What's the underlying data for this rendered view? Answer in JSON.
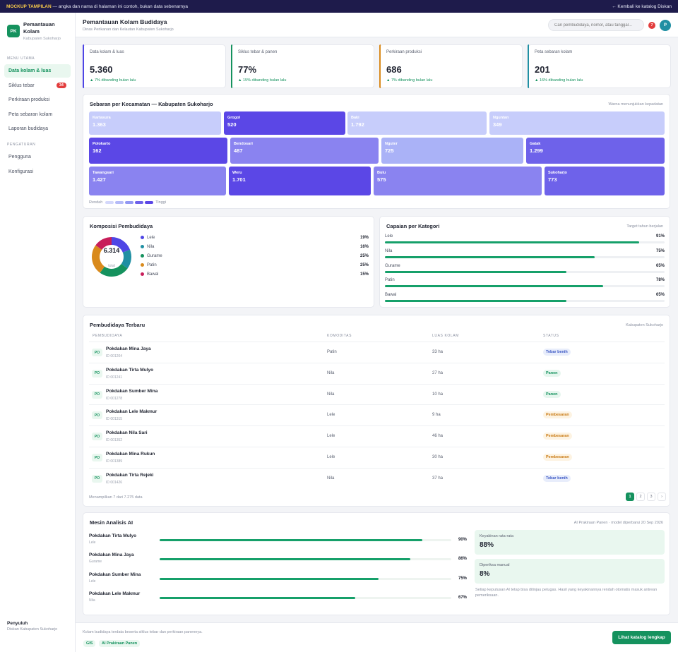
{
  "banner": {
    "tag": "MOCKUP TAMPILAN",
    "text": "— angka dan nama di halaman ini contoh, bukan data sebenarnya",
    "back_link": "← Kembali ke katalog Diskan"
  },
  "sidebar": {
    "logo": "PK",
    "app_title_1": "Pemantauan",
    "app_title_2": "Kolam",
    "app_subtitle": "Kabupaten Sukoharjo",
    "section_main": "MENU UTAMA",
    "items": [
      {
        "label": "Data kolam & luas",
        "active": true
      },
      {
        "label": "Siklus tebar",
        "badge": "34"
      },
      {
        "label": "Perkiraan produksi"
      },
      {
        "label": "Peta sebaran kolam"
      },
      {
        "label": "Laporan budidaya"
      }
    ],
    "section_settings": "PENGATURAN",
    "settings_items": [
      {
        "label": "Pengguna"
      },
      {
        "label": "Konfigurasi"
      }
    ],
    "footer_name": "Penyuluh",
    "footer_sub": "Diskan Kabupaten Sukoharjo"
  },
  "header": {
    "title": "Pemantauan Kolam Budidaya",
    "subtitle": "Dinas Perikanan dan Kelautan Kabupaten Sukoharjo",
    "search_placeholder": "Cari pembudidaya, nomor, atau tanggal...",
    "notif_count": "7",
    "avatar": "P"
  },
  "kpis": [
    {
      "label": "Data kolam & luas",
      "value": "5.360",
      "delta": "▲ 7% dibanding bulan lalu",
      "accent": "#4f46e5"
    },
    {
      "label": "Siklus tebar & panen",
      "value": "77%",
      "delta": "▲ 15% dibanding bulan lalu",
      "accent": "#15925e"
    },
    {
      "label": "Perkiraan produksi",
      "value": "686",
      "delta": "▲ 7% dibanding bulan lalu",
      "accent": "#d98a1c"
    },
    {
      "label": "Peta sebaran kolam",
      "value": "201",
      "delta": "▲ 16% dibanding bulan lalu",
      "accent": "#1f8fa3"
    }
  ],
  "treemap": {
    "title": "Sebaran per Kecamatan — Kabupaten Sukoharjo",
    "note": "Warna menunjukkan kepadatan",
    "tiles": [
      {
        "name": "Kartasura",
        "value": "1.363",
        "color": "#c7cdfb"
      },
      {
        "name": "Grogol",
        "value": "520",
        "color": "#5b47e6"
      },
      {
        "name": "Baki",
        "value": "1.792",
        "color": "#c7cdfb"
      },
      {
        "name": "Nguntan",
        "value": "349",
        "color": "#c7cdfb"
      },
      {
        "name": "Polokarto",
        "value": "162",
        "color": "#5b47e6"
      },
      {
        "name": "Bendosari",
        "value": "487",
        "color": "#8a83f0"
      },
      {
        "name": "Nguter",
        "value": "725",
        "color": "#aab2f7"
      },
      {
        "name": "Gatak",
        "value": "1.299",
        "color": "#6e62ea"
      },
      {
        "name": "Tawangsari",
        "value": "1.427",
        "color": "#8a83f0"
      },
      {
        "name": "Weru",
        "value": "1.701",
        "color": "#5b47e6"
      },
      {
        "name": "Bulu",
        "value": "575",
        "color": "#8a83f0"
      },
      {
        "name": "Sukoharjo",
        "value": "773",
        "color": "#6e62ea"
      }
    ],
    "legend_low": "Rendah",
    "legend_high": "Tinggi",
    "legend_colors": [
      "#d4d8fb",
      "#b6bcf8",
      "#9399f3",
      "#6e62ea",
      "#5b47e6"
    ]
  },
  "composition": {
    "title": "Komposisi Pembudidaya",
    "total": "6.314",
    "total_label": "total",
    "items": [
      {
        "name": "Lele",
        "pct": "19%",
        "share": 19,
        "color": "#4f46e5"
      },
      {
        "name": "Nila",
        "pct": "16%",
        "share": 16,
        "color": "#1f8fa3"
      },
      {
        "name": "Gurame",
        "pct": "25%",
        "share": 25,
        "color": "#15925e"
      },
      {
        "name": "Patin",
        "pct": "25%",
        "share": 25,
        "color": "#d98a1c"
      },
      {
        "name": "Bawal",
        "pct": "15%",
        "share": 15,
        "color": "#c81e5a"
      }
    ]
  },
  "achievement": {
    "title": "Capaian per Kategori",
    "note": "Target tahun berjalan",
    "items": [
      {
        "name": "Lele",
        "pct": "91%",
        "value": 91
      },
      {
        "name": "Nila",
        "pct": "75%",
        "value": 75
      },
      {
        "name": "Gurame",
        "pct": "65%",
        "value": 65
      },
      {
        "name": "Patin",
        "pct": "78%",
        "value": 78
      },
      {
        "name": "Bawal",
        "pct": "65%",
        "value": 65
      }
    ]
  },
  "table": {
    "title": "Pembudidaya Terbaru",
    "note": "Kabupaten Sukoharjo",
    "columns": [
      "PEMBUDIDAYA",
      "KOMODITAS",
      "LUAS KOLAM",
      "STATUS"
    ],
    "rows": [
      {
        "initials": "PO",
        "name": "Pokdakan Mina Jaya",
        "id": "ID 001204",
        "commodity": "Patin",
        "area": "33 ha",
        "status": "Tebar benih",
        "kind": "tebar"
      },
      {
        "initials": "PO",
        "name": "Pokdakan Tirta Mulyo",
        "id": "ID 001241",
        "commodity": "Nila",
        "area": "27 ha",
        "status": "Panen",
        "kind": "panen"
      },
      {
        "initials": "PO",
        "name": "Pokdakan Sumber Mina",
        "id": "ID 001278",
        "commodity": "Nila",
        "area": "10 ha",
        "status": "Panen",
        "kind": "panen"
      },
      {
        "initials": "PO",
        "name": "Pokdakan Lele Makmur",
        "id": "ID 001315",
        "commodity": "Lele",
        "area": "9 ha",
        "status": "Pembesaran",
        "kind": "besar"
      },
      {
        "initials": "PO",
        "name": "Pokdakan Nila Sari",
        "id": "ID 001352",
        "commodity": "Lele",
        "area": "46 ha",
        "status": "Pembesaran",
        "kind": "besar"
      },
      {
        "initials": "PO",
        "name": "Pokdakan Mina Rukun",
        "id": "ID 001389",
        "commodity": "Lele",
        "area": "30 ha",
        "status": "Pembesaran",
        "kind": "besar"
      },
      {
        "initials": "PO",
        "name": "Pokdakan Tirta Rejeki",
        "id": "ID 001426",
        "commodity": "Nila",
        "area": "37 ha",
        "status": "Tebar benih",
        "kind": "tebar"
      }
    ],
    "footer": "Menampilkan 7 dari 7.275 data",
    "pages": [
      "1",
      "2",
      "3",
      "›"
    ]
  },
  "ai": {
    "title": "Mesin Analisis AI",
    "note": "AI Prakiraan Panen · model diperbarui 20 Sep 2026",
    "rows": [
      {
        "name": "Pokdakan Tirta Mulyo",
        "kind": "Lele",
        "pct": "90%",
        "value": 90
      },
      {
        "name": "Pokdakan Mina Jaya",
        "kind": "Gurame",
        "pct": "86%",
        "value": 86
      },
      {
        "name": "Pokdakan Sumber Mina",
        "kind": "Lele",
        "pct": "75%",
        "value": 75
      },
      {
        "name": "Pokdakan Lele Makmur",
        "kind": "Nila",
        "pct": "67%",
        "value": 67
      }
    ],
    "box1_label": "Keyakinan rata-rata",
    "box1_value": "88%",
    "box2_label": "Diperiksa manual",
    "box2_value": "8%",
    "disclaimer": "Setiap keputusan AI tetap bisa ditinjau petugas. Hasil yang keyakinannya rendah otomatis masuk antrean pemeriksaan."
  },
  "footer": {
    "text": "Kolam budidaya terdata beserta siklus tebar dan perkiraan panennya.",
    "chips": [
      "GIS",
      "AI Prakiraan Panen"
    ],
    "cta": "Lihat katalog lengkap"
  }
}
